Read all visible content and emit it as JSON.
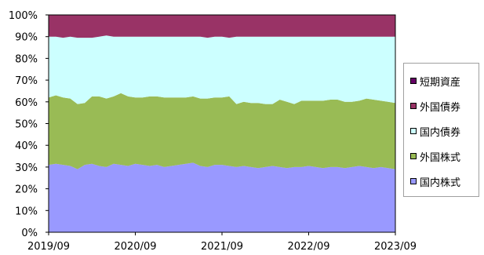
{
  "chart_data": {
    "type": "area",
    "stacked": true,
    "x_tick_labels": [
      "2019/09",
      "2020/09",
      "2021/09",
      "2022/09",
      "2023/09"
    ],
    "y_tick_labels": [
      "0%",
      "10%",
      "20%",
      "30%",
      "40%",
      "50%",
      "60%",
      "70%",
      "80%",
      "90%",
      "100%"
    ],
    "ylim": [
      0,
      100
    ],
    "legend_position": "right",
    "series": [
      {
        "name": "国内株式",
        "color": "#9999ff",
        "values": [
          31,
          31.5,
          31,
          30.5,
          29,
          31,
          31.5,
          30.5,
          30,
          31.5,
          31,
          30.5,
          31.5,
          31,
          30.5,
          31,
          30,
          30.5,
          31,
          31.5,
          32,
          30.5,
          30,
          31,
          31,
          30.5,
          30,
          30.5,
          30,
          29.5,
          30,
          30.5,
          30,
          29.5,
          30,
          30,
          30.5,
          30,
          29.5,
          30,
          30,
          29.5,
          30,
          30.5,
          30,
          29.5,
          30,
          29.5,
          29
        ]
      },
      {
        "name": "外国株式",
        "color": "#99bb55",
        "values": [
          31,
          31.5,
          31,
          31,
          30,
          28.5,
          31,
          32,
          31.5,
          31,
          33,
          32,
          30.5,
          31,
          32,
          31.5,
          32,
          31.5,
          31,
          30.5,
          30.5,
          31,
          31.5,
          31,
          31,
          32,
          29,
          29.5,
          29.5,
          30,
          29,
          28.5,
          31,
          30.5,
          29,
          30.5,
          30,
          30.5,
          31,
          31,
          31,
          30.5,
          30,
          30,
          31.5,
          31.5,
          30.5,
          30.5,
          30.5
        ]
      },
      {
        "name": "国内債券",
        "color": "#ccffff",
        "values": [
          28,
          27,
          27.5,
          28.5,
          30.5,
          30,
          27,
          27.5,
          29,
          27.5,
          26,
          27.5,
          28,
          28,
          27.5,
          27.5,
          28,
          28,
          28,
          28,
          27.5,
          28.5,
          28,
          28,
          28,
          27,
          31,
          30,
          30.5,
          30.5,
          31,
          31,
          29,
          30,
          31,
          29.5,
          29.5,
          29.5,
          29.5,
          29,
          29,
          30,
          30,
          29.5,
          28.5,
          29,
          29.5,
          30,
          30.5
        ]
      },
      {
        "name": "外国債券",
        "color": "#993366",
        "values": [
          10,
          10,
          10.5,
          10,
          10.5,
          10.5,
          10.5,
          10,
          9.5,
          10,
          10,
          10,
          10,
          10,
          10,
          10,
          10,
          10,
          10,
          10,
          10,
          10,
          10.5,
          10,
          10,
          10.5,
          10,
          10,
          10,
          10,
          10,
          10,
          10,
          10,
          10,
          10,
          10,
          10,
          10,
          10,
          10,
          10,
          10,
          10,
          10,
          10,
          10,
          10,
          10
        ]
      },
      {
        "name": "短期資産",
        "color": "#660066",
        "values": [
          0,
          0,
          0,
          0,
          0,
          0,
          0,
          0,
          0,
          0,
          0,
          0,
          0,
          0,
          0,
          0,
          0,
          0,
          0,
          0,
          0,
          0,
          0,
          0,
          0,
          0,
          0,
          0,
          0,
          0,
          0,
          0,
          0,
          0,
          0,
          0,
          0,
          0,
          0,
          0,
          0,
          0,
          0,
          0,
          0,
          0,
          0,
          0,
          0
        ]
      }
    ],
    "legend_order": [
      "短期資産",
      "外国債券",
      "国内債券",
      "外国株式",
      "国内株式"
    ]
  }
}
